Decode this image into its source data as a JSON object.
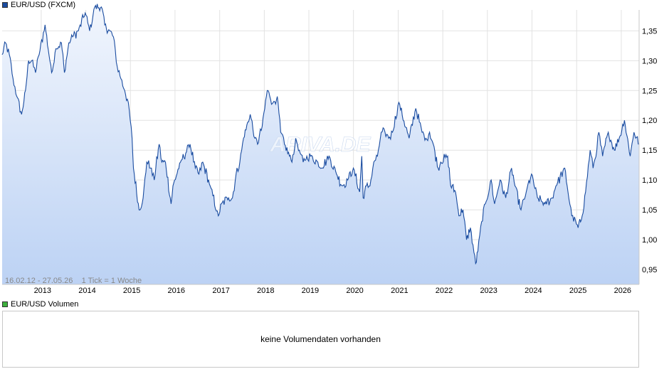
{
  "legend": {
    "main_label": "EUR/USD (FXCM)",
    "main_color": "#1a4ca0",
    "volume_label": "EUR/USD Volumen",
    "volume_color": "#3db03d"
  },
  "range_info": "16.02.12 - 27.05.26    1 Tick = 1 Woche",
  "watermark": "ARIVA.DE",
  "volume_panel": {
    "message": "keine Volumendaten vorhanden"
  },
  "colors": {
    "line": "#1a4ca0",
    "area_top": "#f2f6fd",
    "area_bottom": "#bcd2f4",
    "grid": "#e2e2e2"
  },
  "chart_data": {
    "type": "area",
    "title": "EUR/USD (FXCM)",
    "xlabel": "",
    "ylabel": "",
    "x_range": [
      "2012-02-16",
      "2026-05-27"
    ],
    "ylim": [
      0.925,
      1.385
    ],
    "y_ticks": [
      0.95,
      1.0,
      1.05,
      1.1,
      1.15,
      1.2,
      1.25,
      1.3,
      1.35
    ],
    "y_tick_labels": [
      "0,95",
      "1,00",
      "1,05",
      "1,10",
      "1,15",
      "1,20",
      "1,25",
      "1,30",
      "1,35"
    ],
    "x_ticks": [
      "2013",
      "2014",
      "2015",
      "2016",
      "2017",
      "2018",
      "2019",
      "2020",
      "2021",
      "2022",
      "2023",
      "2024",
      "2025",
      "2026"
    ],
    "grid": true,
    "legend_position": "top-left",
    "series": [
      {
        "values": [
          [
            "2012-02-16",
            1.31
          ],
          [
            "2012-03-15",
            1.33
          ],
          [
            "2012-04-15",
            1.31
          ],
          [
            "2012-05-15",
            1.27
          ],
          [
            "2012-06-15",
            1.24
          ],
          [
            "2012-07-24",
            1.21
          ],
          [
            "2012-08-25",
            1.25
          ],
          [
            "2012-09-20",
            1.3
          ],
          [
            "2012-10-15",
            1.3
          ],
          [
            "2012-11-15",
            1.28
          ],
          [
            "2012-12-15",
            1.31
          ],
          [
            "2013-02-01",
            1.36
          ],
          [
            "2013-03-27",
            1.28
          ],
          [
            "2013-05-01",
            1.32
          ],
          [
            "2013-06-15",
            1.33
          ],
          [
            "2013-07-10",
            1.28
          ],
          [
            "2013-08-15",
            1.33
          ],
          [
            "2013-09-15",
            1.34
          ],
          [
            "2013-11-01",
            1.35
          ],
          [
            "2013-12-27",
            1.38
          ],
          [
            "2014-02-01",
            1.35
          ],
          [
            "2014-03-15",
            1.39
          ],
          [
            "2014-05-08",
            1.39
          ],
          [
            "2014-06-05",
            1.36
          ],
          [
            "2014-07-15",
            1.35
          ],
          [
            "2014-08-15",
            1.34
          ],
          [
            "2014-09-15",
            1.29
          ],
          [
            "2014-10-15",
            1.27
          ],
          [
            "2014-11-15",
            1.25
          ],
          [
            "2014-12-15",
            1.23
          ],
          [
            "2015-01-15",
            1.17
          ],
          [
            "2015-01-26",
            1.12
          ],
          [
            "2015-03-13",
            1.05
          ],
          [
            "2015-04-15",
            1.07
          ],
          [
            "2015-05-15",
            1.13
          ],
          [
            "2015-06-15",
            1.12
          ],
          [
            "2015-07-15",
            1.1
          ],
          [
            "2015-08-24",
            1.16
          ],
          [
            "2015-09-15",
            1.13
          ],
          [
            "2015-10-15",
            1.13
          ],
          [
            "2015-11-30",
            1.06
          ],
          [
            "2015-12-15",
            1.09
          ],
          [
            "2016-02-15",
            1.13
          ],
          [
            "2016-05-03",
            1.16
          ],
          [
            "2016-06-15",
            1.12
          ],
          [
            "2016-07-15",
            1.11
          ],
          [
            "2016-08-15",
            1.13
          ],
          [
            "2016-10-15",
            1.09
          ],
          [
            "2016-12-20",
            1.04
          ],
          [
            "2017-01-15",
            1.06
          ],
          [
            "2017-03-15",
            1.07
          ],
          [
            "2017-04-15",
            1.07
          ],
          [
            "2017-05-15",
            1.11
          ],
          [
            "2017-06-15",
            1.13
          ],
          [
            "2017-07-15",
            1.17
          ],
          [
            "2017-09-08",
            1.21
          ],
          [
            "2017-10-15",
            1.17
          ],
          [
            "2017-11-07",
            1.16
          ],
          [
            "2017-12-15",
            1.19
          ],
          [
            "2018-01-25",
            1.25
          ],
          [
            "2018-02-15",
            1.24
          ],
          [
            "2018-03-15",
            1.23
          ],
          [
            "2018-04-17",
            1.24
          ],
          [
            "2018-05-15",
            1.18
          ],
          [
            "2018-06-15",
            1.16
          ],
          [
            "2018-08-15",
            1.13
          ],
          [
            "2018-09-15",
            1.17
          ],
          [
            "2018-10-15",
            1.15
          ],
          [
            "2018-11-15",
            1.13
          ],
          [
            "2018-12-15",
            1.14
          ],
          [
            "2019-01-15",
            1.14
          ],
          [
            "2019-03-15",
            1.13
          ],
          [
            "2019-04-15",
            1.12
          ],
          [
            "2019-06-15",
            1.14
          ],
          [
            "2019-08-15",
            1.11
          ],
          [
            "2019-10-01",
            1.09
          ],
          [
            "2019-11-15",
            1.1
          ],
          [
            "2019-12-31",
            1.12
          ],
          [
            "2020-02-20",
            1.08
          ],
          [
            "2020-03-09",
            1.14
          ],
          [
            "2020-03-20",
            1.07
          ],
          [
            "2020-04-15",
            1.09
          ],
          [
            "2020-05-15",
            1.09
          ],
          [
            "2020-06-15",
            1.13
          ],
          [
            "2020-07-15",
            1.14
          ],
          [
            "2020-08-15",
            1.18
          ],
          [
            "2020-09-15",
            1.18
          ],
          [
            "2020-10-15",
            1.17
          ],
          [
            "2020-11-15",
            1.18
          ],
          [
            "2021-01-06",
            1.23
          ],
          [
            "2021-03-31",
            1.17
          ],
          [
            "2021-05-25",
            1.22
          ],
          [
            "2021-07-15",
            1.18
          ],
          [
            "2021-08-15",
            1.17
          ],
          [
            "2021-09-15",
            1.18
          ],
          [
            "2021-10-15",
            1.16
          ],
          [
            "2021-11-24",
            1.12
          ],
          [
            "2021-12-15",
            1.13
          ],
          [
            "2022-02-10",
            1.14
          ],
          [
            "2022-03-07",
            1.09
          ],
          [
            "2022-04-15",
            1.08
          ],
          [
            "2022-05-13",
            1.04
          ],
          [
            "2022-06-15",
            1.05
          ],
          [
            "2022-07-14",
            1.0
          ],
          [
            "2022-08-15",
            1.02
          ],
          [
            "2022-09-27",
            0.96
          ],
          [
            "2022-10-15",
            0.98
          ],
          [
            "2022-11-15",
            1.03
          ],
          [
            "2022-12-15",
            1.06
          ],
          [
            "2023-02-01",
            1.1
          ],
          [
            "2023-03-01",
            1.06
          ],
          [
            "2023-04-15",
            1.1
          ],
          [
            "2023-05-31",
            1.07
          ],
          [
            "2023-07-18",
            1.12
          ],
          [
            "2023-08-15",
            1.09
          ],
          [
            "2023-10-03",
            1.05
          ],
          [
            "2023-11-15",
            1.08
          ],
          [
            "2023-12-28",
            1.11
          ],
          [
            "2024-02-15",
            1.07
          ],
          [
            "2024-04-16",
            1.06
          ],
          [
            "2024-06-15",
            1.07
          ],
          [
            "2024-07-15",
            1.09
          ],
          [
            "2024-09-25",
            1.12
          ],
          [
            "2024-10-15",
            1.09
          ],
          [
            "2024-11-22",
            1.04
          ],
          [
            "2025-01-13",
            1.02
          ],
          [
            "2025-02-15",
            1.04
          ],
          [
            "2025-03-15",
            1.08
          ],
          [
            "2025-04-21",
            1.15
          ],
          [
            "2025-05-15",
            1.12
          ],
          [
            "2025-06-15",
            1.15
          ],
          [
            "2025-07-01",
            1.18
          ],
          [
            "2025-08-01",
            1.14
          ],
          [
            "2025-09-17",
            1.18
          ],
          [
            "2025-11-05",
            1.15
          ],
          [
            "2025-12-15",
            1.17
          ],
          [
            "2026-01-27",
            1.2
          ],
          [
            "2026-03-15",
            1.14
          ],
          [
            "2026-04-15",
            1.18
          ],
          [
            "2026-05-27",
            1.16
          ]
        ]
      }
    ]
  }
}
